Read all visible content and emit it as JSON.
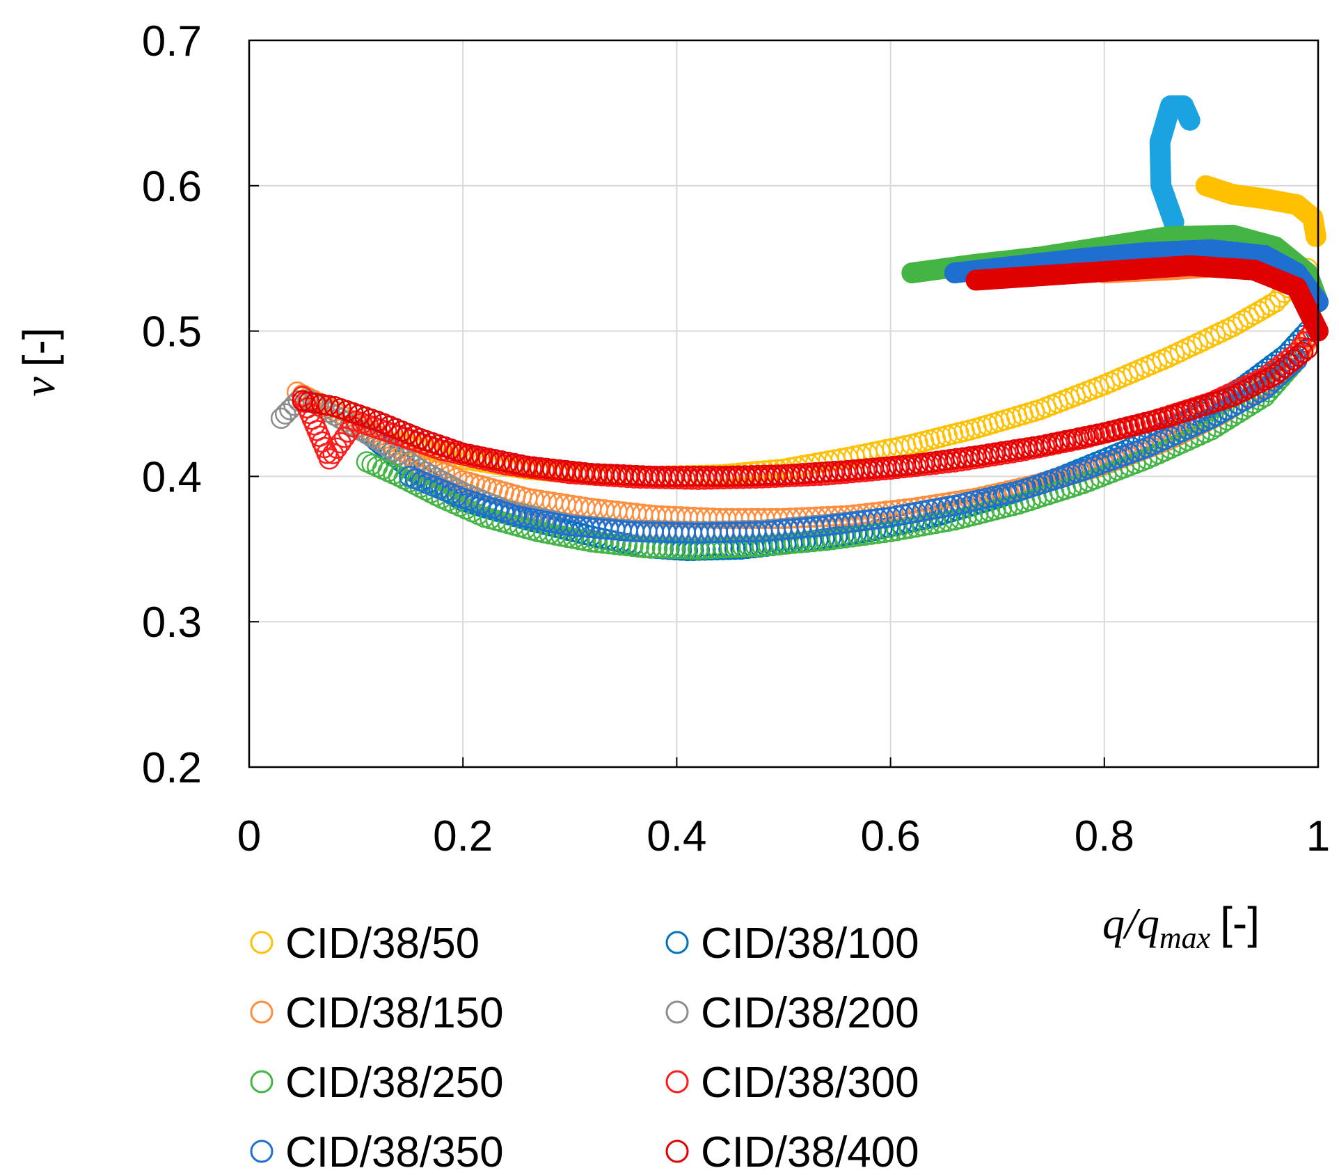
{
  "chart_data": {
    "type": "scatter",
    "title": "",
    "xlabel": {
      "var": "q/q",
      "sub": "max",
      "unit": "[-]"
    },
    "ylabel": {
      "var": "ν",
      "unit": "[-]"
    },
    "xlim": [
      0,
      1
    ],
    "ylim": [
      0.2,
      0.7
    ],
    "xticks": [
      0,
      0.2,
      0.4,
      0.6,
      0.8,
      1
    ],
    "xtick_labels": [
      "0",
      "0.2",
      "0.4",
      "0.6",
      "0.8",
      "1"
    ],
    "yticks": [
      0.2,
      0.3,
      0.4,
      0.5,
      0.6,
      0.7
    ],
    "ytick_labels": [
      "0.2",
      "0.3",
      "0.4",
      "0.5",
      "0.6",
      "0.7"
    ],
    "grid": true,
    "legend_position": "bottom",
    "series": [
      {
        "name": "CID/38/50",
        "color": "#ffc000",
        "unloading": [
          [
            0.14,
            0.424
          ],
          [
            0.2,
            0.412
          ],
          [
            0.26,
            0.405
          ],
          [
            0.32,
            0.401
          ],
          [
            0.38,
            0.4
          ],
          [
            0.44,
            0.401
          ],
          [
            0.5,
            0.405
          ],
          [
            0.56,
            0.413
          ],
          [
            0.62,
            0.422
          ],
          [
            0.68,
            0.433
          ],
          [
            0.74,
            0.446
          ],
          [
            0.8,
            0.463
          ],
          [
            0.86,
            0.482
          ],
          [
            0.92,
            0.503
          ],
          [
            0.96,
            0.52
          ],
          [
            0.99,
            0.543
          ]
        ],
        "reloading": [
          [
            0.895,
            0.6
          ],
          [
            0.92,
            0.594
          ],
          [
            0.95,
            0.591
          ],
          [
            0.98,
            0.587
          ],
          [
            0.995,
            0.578
          ],
          [
            0.998,
            0.565
          ]
        ]
      },
      {
        "name": "CID/38/100",
        "color": "#0070c0",
        "unloading": [
          [
            0.11,
            0.43
          ],
          [
            0.15,
            0.405
          ],
          [
            0.2,
            0.383
          ],
          [
            0.26,
            0.37
          ],
          [
            0.32,
            0.359
          ],
          [
            0.37,
            0.351
          ],
          [
            0.41,
            0.349
          ],
          [
            0.46,
            0.35
          ],
          [
            0.52,
            0.355
          ],
          [
            0.58,
            0.362
          ],
          [
            0.64,
            0.372
          ],
          [
            0.7,
            0.385
          ],
          [
            0.76,
            0.4
          ],
          [
            0.82,
            0.418
          ],
          [
            0.88,
            0.44
          ],
          [
            0.93,
            0.462
          ],
          [
            0.97,
            0.484
          ],
          [
            0.99,
            0.5
          ]
        ],
        "reloading": [
          [
            0.865,
            0.575
          ],
          [
            0.853,
            0.6
          ],
          [
            0.852,
            0.63
          ],
          [
            0.862,
            0.655
          ],
          [
            0.874,
            0.655
          ],
          [
            0.88,
            0.645
          ]
        ],
        "reload_color": "#1aa3e0"
      },
      {
        "name": "CID/38/150",
        "color": "#ff8c3a",
        "unloading": [
          [
            0.045,
            0.458
          ],
          [
            0.08,
            0.445
          ],
          [
            0.12,
            0.428
          ],
          [
            0.16,
            0.41
          ],
          [
            0.2,
            0.397
          ],
          [
            0.26,
            0.385
          ],
          [
            0.32,
            0.378
          ],
          [
            0.38,
            0.373
          ],
          [
            0.44,
            0.371
          ],
          [
            0.5,
            0.371
          ],
          [
            0.56,
            0.373
          ],
          [
            0.62,
            0.378
          ],
          [
            0.68,
            0.385
          ],
          [
            0.74,
            0.395
          ],
          [
            0.8,
            0.408
          ],
          [
            0.86,
            0.425
          ],
          [
            0.91,
            0.443
          ],
          [
            0.95,
            0.462
          ],
          [
            0.98,
            0.48
          ],
          [
            0.995,
            0.5
          ]
        ],
        "reloading": [
          [
            0.8,
            0.54
          ],
          [
            0.86,
            0.542
          ],
          [
            0.92,
            0.545
          ]
        ]
      },
      {
        "name": "CID/38/200",
        "color": "#8c8c8c",
        "unloading": [
          [
            0.03,
            0.44
          ],
          [
            0.05,
            0.455
          ],
          [
            0.08,
            0.442
          ],
          [
            0.12,
            0.425
          ],
          [
            0.16,
            0.405
          ],
          [
            0.2,
            0.389
          ],
          [
            0.24,
            0.377
          ],
          [
            0.3,
            0.367
          ],
          [
            0.36,
            0.363
          ],
          [
            0.42,
            0.362
          ],
          [
            0.48,
            0.363
          ],
          [
            0.54,
            0.367
          ],
          [
            0.6,
            0.372
          ],
          [
            0.66,
            0.38
          ],
          [
            0.72,
            0.39
          ],
          [
            0.78,
            0.404
          ],
          [
            0.84,
            0.42
          ],
          [
            0.9,
            0.44
          ],
          [
            0.95,
            0.46
          ],
          [
            0.98,
            0.48
          ]
        ],
        "reloading": []
      },
      {
        "name": "CID/38/250",
        "color": "#44b544",
        "unloading": [
          [
            0.11,
            0.41
          ],
          [
            0.14,
            0.4
          ],
          [
            0.18,
            0.385
          ],
          [
            0.22,
            0.372
          ],
          [
            0.27,
            0.362
          ],
          [
            0.32,
            0.355
          ],
          [
            0.37,
            0.351
          ],
          [
            0.42,
            0.35
          ],
          [
            0.48,
            0.352
          ],
          [
            0.54,
            0.356
          ],
          [
            0.6,
            0.362
          ],
          [
            0.66,
            0.37
          ],
          [
            0.72,
            0.381
          ],
          [
            0.78,
            0.395
          ],
          [
            0.84,
            0.412
          ],
          [
            0.9,
            0.432
          ],
          [
            0.95,
            0.455
          ],
          [
            0.98,
            0.48
          ]
        ],
        "reloading": [
          [
            0.62,
            0.54
          ],
          [
            0.68,
            0.546
          ],
          [
            0.74,
            0.551
          ],
          [
            0.8,
            0.558
          ],
          [
            0.86,
            0.565
          ],
          [
            0.92,
            0.566
          ],
          [
            0.96,
            0.558
          ],
          [
            0.99,
            0.54
          ],
          [
            1.0,
            0.52
          ]
        ]
      },
      {
        "name": "CID/38/300",
        "color": "#ff1a1a",
        "unloading": [
          [
            0.05,
            0.455
          ],
          [
            0.075,
            0.412
          ],
          [
            0.1,
            0.438
          ],
          [
            0.14,
            0.428
          ],
          [
            0.18,
            0.418
          ],
          [
            0.24,
            0.408
          ],
          [
            0.3,
            0.402
          ],
          [
            0.36,
            0.399
          ],
          [
            0.42,
            0.398
          ],
          [
            0.48,
            0.399
          ],
          [
            0.54,
            0.401
          ],
          [
            0.6,
            0.405
          ],
          [
            0.66,
            0.41
          ],
          [
            0.72,
            0.417
          ],
          [
            0.78,
            0.426
          ],
          [
            0.84,
            0.437
          ],
          [
            0.9,
            0.451
          ],
          [
            0.95,
            0.468
          ],
          [
            0.98,
            0.485
          ],
          [
            0.995,
            0.5
          ]
        ],
        "reloading": []
      },
      {
        "name": "CID/38/350",
        "color": "#1f6fd1",
        "unloading": [
          [
            0.15,
            0.4
          ],
          [
            0.2,
            0.385
          ],
          [
            0.25,
            0.373
          ],
          [
            0.3,
            0.366
          ],
          [
            0.36,
            0.362
          ],
          [
            0.42,
            0.361
          ],
          [
            0.48,
            0.362
          ],
          [
            0.54,
            0.366
          ],
          [
            0.6,
            0.372
          ],
          [
            0.66,
            0.38
          ],
          [
            0.72,
            0.39
          ],
          [
            0.78,
            0.404
          ],
          [
            0.84,
            0.42
          ],
          [
            0.9,
            0.44
          ],
          [
            0.95,
            0.46
          ],
          [
            0.98,
            0.48
          ]
        ],
        "reloading": [
          [
            0.66,
            0.54
          ],
          [
            0.72,
            0.545
          ],
          [
            0.78,
            0.55
          ],
          [
            0.84,
            0.554
          ],
          [
            0.9,
            0.556
          ],
          [
            0.95,
            0.552
          ],
          [
            0.98,
            0.54
          ],
          [
            1.0,
            0.52
          ]
        ]
      },
      {
        "name": "CID/38/400",
        "color": "#e00000",
        "unloading": [
          [
            0.05,
            0.452
          ],
          [
            0.08,
            0.448
          ],
          [
            0.12,
            0.438
          ],
          [
            0.16,
            0.426
          ],
          [
            0.2,
            0.416
          ],
          [
            0.26,
            0.407
          ],
          [
            0.32,
            0.402
          ],
          [
            0.38,
            0.4
          ],
          [
            0.44,
            0.4
          ],
          [
            0.5,
            0.401
          ],
          [
            0.56,
            0.404
          ],
          [
            0.62,
            0.408
          ],
          [
            0.68,
            0.414
          ],
          [
            0.74,
            0.421
          ],
          [
            0.8,
            0.43
          ],
          [
            0.86,
            0.441
          ],
          [
            0.92,
            0.455
          ],
          [
            0.96,
            0.47
          ],
          [
            0.99,
            0.488
          ]
        ],
        "reloading": [
          [
            0.68,
            0.535
          ],
          [
            0.74,
            0.538
          ],
          [
            0.8,
            0.541
          ],
          [
            0.88,
            0.545
          ],
          [
            0.94,
            0.542
          ],
          [
            0.98,
            0.53
          ],
          [
            1.0,
            0.5
          ]
        ]
      }
    ]
  }
}
